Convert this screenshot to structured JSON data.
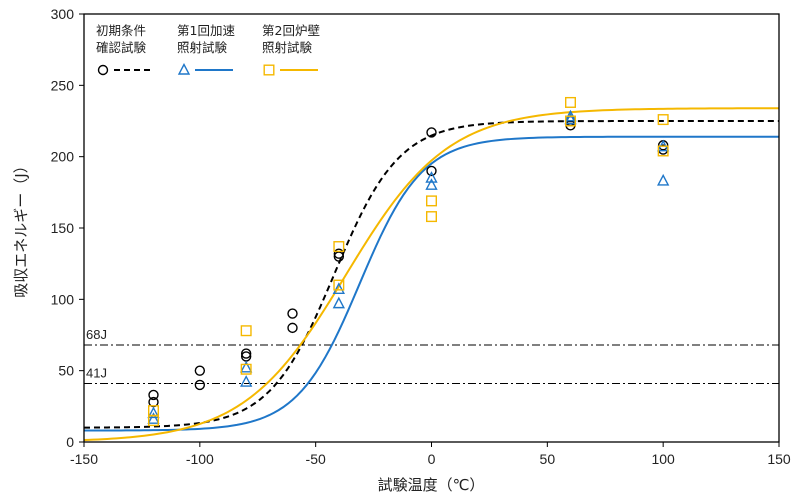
{
  "chart_data": {
    "type": "scatter",
    "xlabel": "試験温度（℃）",
    "ylabel": "吸収エネルギー（J）",
    "xlim": [
      -150,
      150
    ],
    "ylim": [
      0,
      300
    ],
    "xticks": [
      -150,
      -100,
      -50,
      0,
      50,
      100,
      150
    ],
    "yticks": [
      0,
      50,
      100,
      150,
      200,
      250,
      300
    ],
    "grid": false,
    "legend_position": "top-left",
    "reference_lines": [
      {
        "label": "68J",
        "y": 68
      },
      {
        "label": "41J",
        "y": 41
      }
    ],
    "series": [
      {
        "name_lines": [
          "初期条件",
          "確認試験"
        ],
        "marker": "circle",
        "line_style": "dashed",
        "color": "#000000",
        "points": [
          [
            -120,
            33
          ],
          [
            -120,
            28
          ],
          [
            -100,
            50
          ],
          [
            -100,
            40
          ],
          [
            -80,
            62
          ],
          [
            -80,
            60
          ],
          [
            -60,
            90
          ],
          [
            -60,
            80
          ],
          [
            -40,
            132
          ],
          [
            -40,
            130
          ],
          [
            0,
            217
          ],
          [
            0,
            190
          ],
          [
            60,
            225
          ],
          [
            60,
            222
          ],
          [
            100,
            208
          ],
          [
            100,
            205
          ]
        ],
        "fit": {
          "lower": 10,
          "upper": 225,
          "t0": -42,
          "c": 28
        }
      },
      {
        "name_lines": [
          "第1回加速",
          "照射試験"
        ],
        "marker": "triangle",
        "line_style": "solid",
        "color": "#1f77c9",
        "points": [
          [
            -120,
            16
          ],
          [
            -120,
            20
          ],
          [
            -80,
            42
          ],
          [
            -80,
            52
          ],
          [
            -40,
            107
          ],
          [
            -40,
            97
          ],
          [
            0,
            180
          ],
          [
            0,
            185
          ],
          [
            60,
            228
          ],
          [
            60,
            226
          ],
          [
            100,
            207
          ],
          [
            100,
            183
          ]
        ],
        "fit": {
          "lower": 8,
          "upper": 214,
          "t0": -31,
          "c": 27
        }
      },
      {
        "name_lines": [
          "第2回炉壁",
          "照射試験"
        ],
        "marker": "square",
        "line_style": "solid",
        "color": "#f5b800",
        "points": [
          [
            -120,
            15
          ],
          [
            -120,
            22
          ],
          [
            -80,
            78
          ],
          [
            -80,
            51
          ],
          [
            -40,
            137
          ],
          [
            -40,
            110
          ],
          [
            0,
            158
          ],
          [
            0,
            169
          ],
          [
            60,
            238
          ],
          [
            60,
            225
          ],
          [
            100,
            226
          ],
          [
            100,
            204
          ]
        ],
        "fit": {
          "lower": 0,
          "upper": 234,
          "t0": -37,
          "c": 44
        }
      }
    ]
  }
}
